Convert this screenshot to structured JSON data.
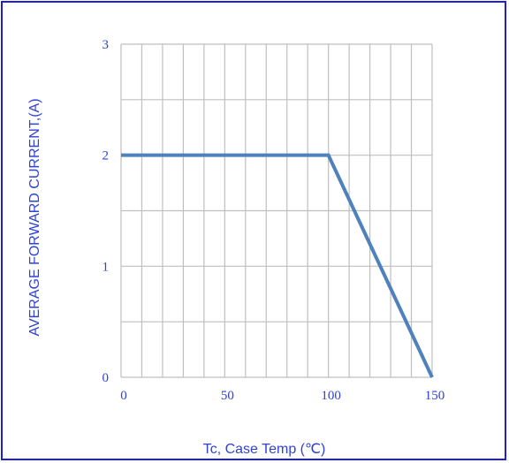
{
  "chart_data": {
    "type": "line",
    "xlabel": "Tc, Case Temp (℃)",
    "ylabel": "AVERAGE FORWARD CURRENT,(A)",
    "xlim": [
      0,
      150
    ],
    "ylim": [
      0,
      3
    ],
    "x_ticks": [
      "0",
      "50",
      "100",
      "150"
    ],
    "y_ticks": [
      "0",
      "1",
      "2",
      "3"
    ],
    "grid": true,
    "series": [
      {
        "x": [
          0,
          100,
          150
        ],
        "y": [
          2,
          2,
          0
        ]
      }
    ],
    "colors": {
      "line": "#4f81bd",
      "grid": "#bfbfbf",
      "text": "#2f42d6",
      "frame": "#1f1fd6"
    }
  }
}
